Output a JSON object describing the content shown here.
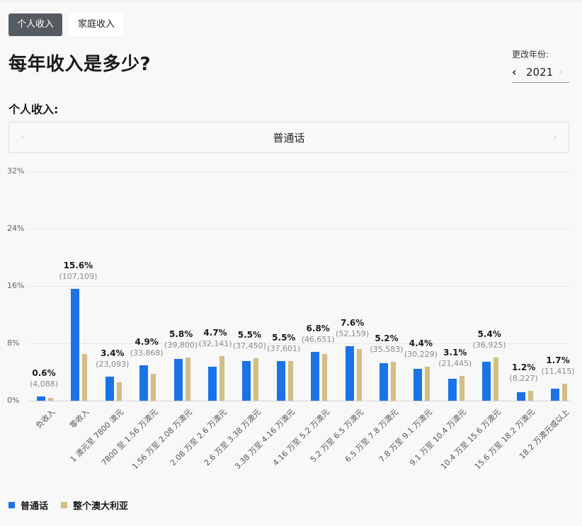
{
  "tabs": [
    {
      "label": "个人收入",
      "active": true
    },
    {
      "label": "家庭收入",
      "active": false
    }
  ],
  "title": "每年收入是多少?",
  "year_selector": {
    "label": "更改年份:",
    "value": "2021",
    "prev_icon": "chevron-left-icon",
    "next_icon": "chevron-right-icon"
  },
  "subtitle": "个人收入:",
  "language_selector": {
    "value": "普通话",
    "prev_icon": "chevron-left-icon",
    "next_icon": "chevron-right-icon"
  },
  "colors": {
    "mandarin": "#1a73e8",
    "australia": "#d4bd86",
    "active_tab": "#555b61"
  },
  "chart_data": {
    "type": "bar",
    "title": "个人收入",
    "xlabel": "",
    "ylabel": "",
    "ylim": [
      0,
      32
    ],
    "yticks": [
      "0%",
      "8%",
      "16%",
      "24%",
      "32%"
    ],
    "grid": true,
    "legend_position": "bottom-left",
    "categories": [
      "负收入",
      "零收入",
      "1 澳元至 7800 澳元",
      "7800 至 1.56 万澳元",
      "1.56 万至 2.08 万澳元",
      "2.08 万至 2.6 万澳元",
      "2.6 万至 3.38 万澳元",
      "3.38 万至 4.16 万澳元",
      "4.16 万至 5.2 万澳元",
      "5.2 万至 6.5 万澳元",
      "6.5 万至 7.8 万澳元",
      "7.8 万至 9.1 万澳元",
      "9.1 万至 10.4 万澳元",
      "10.4 万至 15.6 万澳元",
      "15.6 万至 18.2 万澳元",
      "18.2 万澳元或以上"
    ],
    "series": [
      {
        "name": "普通话",
        "values": [
          0.6,
          15.6,
          3.4,
          4.9,
          5.8,
          4.7,
          5.5,
          5.5,
          6.8,
          7.6,
          5.2,
          4.4,
          3.1,
          5.4,
          1.2,
          1.7
        ],
        "labels": [
          "0.6%",
          "15.6%",
          "3.4%",
          "4.9%",
          "5.8%",
          "4.7%",
          "5.5%",
          "5.5%",
          "6.8%",
          "7.6%",
          "5.2%",
          "4.4%",
          "3.1%",
          "5.4%",
          "1.2%",
          "1.7%"
        ],
        "counts": [
          "(4,088)",
          "(107,109)",
          "(23,093)",
          "(33,868)",
          "(39,800)",
          "(32,141)",
          "(37,450)",
          "(37,601)",
          "(46,651)",
          "(52,159)",
          "(35,583)",
          "(30,229)",
          "(21,445)",
          "(36,925)",
          "(8,227)",
          "(11,415)"
        ]
      },
      {
        "name": "整个澳大利亚",
        "values": [
          0.4,
          6.5,
          2.6,
          3.8,
          6.0,
          6.2,
          5.9,
          5.5,
          6.5,
          7.2,
          5.4,
          4.7,
          3.5,
          6.0,
          1.4,
          2.4
        ]
      }
    ]
  },
  "legend": [
    {
      "label": "普通话",
      "color": "#1a73e8"
    },
    {
      "label": "整个澳大利亚",
      "color": "#d4bd86"
    }
  ]
}
